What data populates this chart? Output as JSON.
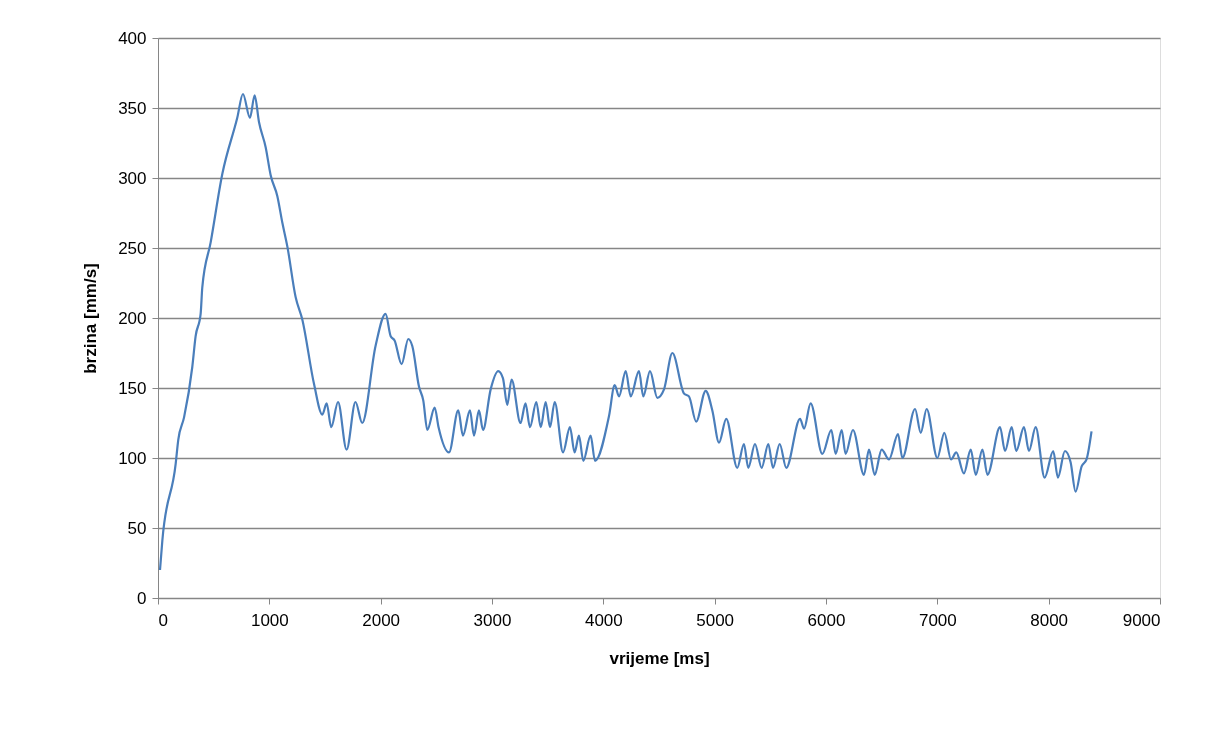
{
  "chart_data": {
    "type": "line",
    "xlabel": "vrijeme [ms]",
    "ylabel": "brzina [mm/s]",
    "xlim": [
      0,
      9000
    ],
    "xticks": [
      0,
      1000,
      2000,
      3000,
      4000,
      5000,
      6000,
      7000,
      8000,
      9000
    ],
    "ylim": [
      0,
      400
    ],
    "yticks": [
      0,
      50,
      100,
      150,
      200,
      250,
      300,
      350,
      400
    ],
    "grid": "y",
    "marker": "none",
    "line_style": "solid",
    "series": [
      {
        "color": "#4a7ebb",
        "x": [
          18,
          39,
          159,
          182,
          234,
          308,
          338,
          383,
          398,
          473,
          578,
          712,
          763,
          826,
          868,
          907,
          967,
          1012,
          1072,
          1117,
          1162,
          1236,
          1296,
          1401,
          1476,
          1515,
          1556,
          1617,
          1694,
          1774,
          1834,
          1954,
          2044,
          2090,
          2125,
          2188,
          2248,
          2284,
          2344,
          2383,
          2419,
          2485,
          2520,
          2614,
          2697,
          2739,
          2802,
          2838,
          2883,
          2919,
          2988,
          3056,
          3098,
          3137,
          3176,
          3256,
          3301,
          3341,
          3398,
          3438,
          3482,
          3521,
          3563,
          3638,
          3700,
          3742,
          3781,
          3820,
          3886,
          3925,
          4051,
          4102,
          4141,
          4201,
          4246,
          4320,
          4359,
          4419,
          4485,
          4545,
          4620,
          4725,
          4769,
          4834,
          4919,
          4979,
          5039,
          5104,
          5203,
          5263,
          5302,
          5362,
          5422,
          5482,
          5524,
          5584,
          5643,
          5767,
          5803,
          5862,
          5967,
          6048,
          6087,
          6141,
          6176,
          6242,
          6341,
          6386,
          6437,
          6500,
          6566,
          6647,
          6686,
          6800,
          6851,
          6904,
          7000,
          7063,
          7123,
          7170,
          7239,
          7300,
          7345,
          7405,
          7450,
          7563,
          7608,
          7668,
          7709,
          7778,
          7823,
          7883,
          7964,
          8041,
          8083,
          8146,
          8197,
          8242,
          8296,
          8340,
          8385
        ],
        "values": [
          20,
          41,
          96,
          113,
          129,
          165,
          187,
          203,
          222,
          254,
          303,
          343,
          360,
          343,
          359,
          340,
          322,
          302,
          287,
          268,
          251,
          215,
          199,
          153,
          131,
          139,
          122,
          140,
          106,
          140,
          125,
          180,
          203,
          187,
          184,
          167,
          185,
          180,
          151,
          141,
          120,
          136,
          122,
          104,
          134,
          116,
          134,
          116,
          134,
          120,
          149,
          162,
          157,
          138,
          156,
          125,
          139,
          122,
          140,
          122,
          140,
          122,
          140,
          104,
          122,
          104,
          116,
          98,
          116,
          98,
          130,
          152,
          144,
          162,
          144,
          162,
          144,
          162,
          143,
          149,
          175,
          146,
          144,
          126,
          148,
          134,
          111,
          128,
          93,
          110,
          93,
          110,
          93,
          110,
          93,
          110,
          93,
          128,
          121,
          139,
          103,
          120,
          103,
          120,
          103,
          120,
          88,
          106,
          88,
          106,
          99,
          117,
          100,
          135,
          118,
          135,
          100,
          118,
          99,
          104,
          89,
          106,
          88,
          106,
          88,
          122,
          105,
          122,
          105,
          122,
          105,
          122,
          86,
          105,
          86,
          105,
          97,
          76,
          94,
          99,
          119
        ]
      }
    ]
  }
}
